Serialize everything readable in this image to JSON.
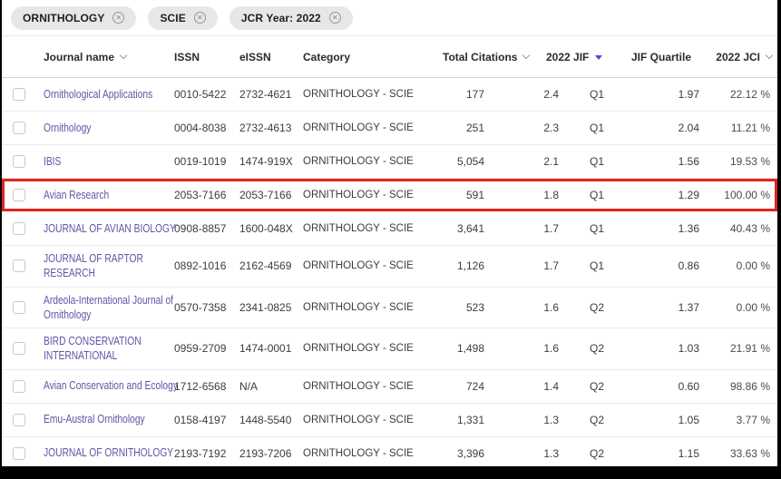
{
  "filters": {
    "chips": [
      {
        "label": "ORNITHOLOGY"
      },
      {
        "label": "SCIE"
      },
      {
        "label": "JCR Year: 2022"
      }
    ]
  },
  "table": {
    "columns": [
      {
        "id": "journal_name",
        "label": "Journal name",
        "sortable": true,
        "sorted": null
      },
      {
        "id": "issn",
        "label": "ISSN",
        "sortable": false,
        "sorted": null
      },
      {
        "id": "eissn",
        "label": "eISSN",
        "sortable": false,
        "sorted": null
      },
      {
        "id": "category",
        "label": "Category",
        "sortable": false,
        "sorted": null
      },
      {
        "id": "total_citations",
        "label": "Total Citations",
        "sortable": true,
        "sorted": null
      },
      {
        "id": "jif",
        "label": "2022 JIF",
        "sortable": true,
        "sorted": "desc"
      },
      {
        "id": "jif_quartile",
        "label": "JIF Quartile",
        "sortable": false,
        "sorted": null
      },
      {
        "id": "jci",
        "label": "2022 JCI",
        "sortable": true,
        "sorted": null
      }
    ],
    "rows": [
      {
        "name": "Ornithological Applications",
        "issn": "0010-5422",
        "eissn": "2732-4621",
        "category": "ORNITHOLOGY - SCIE",
        "total_citations": "177",
        "jif": "2.4",
        "jif_quartile": "Q1",
        "jci": "1.97",
        "jci_pct": "22.12 %",
        "highlighted": false
      },
      {
        "name": "Ornithology",
        "issn": "0004-8038",
        "eissn": "2732-4613",
        "category": "ORNITHOLOGY - SCIE",
        "total_citations": "251",
        "jif": "2.3",
        "jif_quartile": "Q1",
        "jci": "2.04",
        "jci_pct": "11.21 %",
        "highlighted": false
      },
      {
        "name": "IBIS",
        "issn": "0019-1019",
        "eissn": "1474-919X",
        "category": "ORNITHOLOGY - SCIE",
        "total_citations": "5,054",
        "jif": "2.1",
        "jif_quartile": "Q1",
        "jci": "1.56",
        "jci_pct": "19.53 %",
        "highlighted": false
      },
      {
        "name": "Avian Research",
        "issn": "2053-7166",
        "eissn": "2053-7166",
        "category": "ORNITHOLOGY - SCIE",
        "total_citations": "591",
        "jif": "1.8",
        "jif_quartile": "Q1",
        "jci": "1.29",
        "jci_pct": "100.00 %",
        "highlighted": true
      },
      {
        "name": "JOURNAL OF AVIAN BIOLOGY",
        "issn": "0908-8857",
        "eissn": "1600-048X",
        "category": "ORNITHOLOGY - SCIE",
        "total_citations": "3,641",
        "jif": "1.7",
        "jif_quartile": "Q1",
        "jci": "1.36",
        "jci_pct": "40.43 %",
        "highlighted": false
      },
      {
        "name": "JOURNAL OF RAPTOR RESEARCH",
        "issn": "0892-1016",
        "eissn": "2162-4569",
        "category": "ORNITHOLOGY - SCIE",
        "total_citations": "1,126",
        "jif": "1.7",
        "jif_quartile": "Q1",
        "jci": "0.86",
        "jci_pct": "0.00 %",
        "highlighted": false
      },
      {
        "name": "Ardeola-International Journal of Ornithology",
        "issn": "0570-7358",
        "eissn": "2341-0825",
        "category": "ORNITHOLOGY - SCIE",
        "total_citations": "523",
        "jif": "1.6",
        "jif_quartile": "Q2",
        "jci": "1.37",
        "jci_pct": "0.00 %",
        "highlighted": false
      },
      {
        "name": "BIRD CONSERVATION INTERNATIONAL",
        "issn": "0959-2709",
        "eissn": "1474-0001",
        "category": "ORNITHOLOGY - SCIE",
        "total_citations": "1,498",
        "jif": "1.6",
        "jif_quartile": "Q2",
        "jci": "1.03",
        "jci_pct": "21.91 %",
        "highlighted": false
      },
      {
        "name": "Avian Conservation and Ecology",
        "issn": "1712-6568",
        "eissn": "N/A",
        "category": "ORNITHOLOGY - SCIE",
        "total_citations": "724",
        "jif": "1.4",
        "jif_quartile": "Q2",
        "jci": "0.60",
        "jci_pct": "98.86 %",
        "highlighted": false
      },
      {
        "name": "Emu-Austral Ornithology",
        "issn": "0158-4197",
        "eissn": "1448-5540",
        "category": "ORNITHOLOGY - SCIE",
        "total_citations": "1,331",
        "jif": "1.3",
        "jif_quartile": "Q2",
        "jci": "1.05",
        "jci_pct": "3.77 %",
        "highlighted": false
      },
      {
        "name": "JOURNAL OF ORNITHOLOGY",
        "issn": "2193-7192",
        "eissn": "2193-7206",
        "category": "ORNITHOLOGY - SCIE",
        "total_citations": "3,396",
        "jif": "1.3",
        "jif_quartile": "Q2",
        "jci": "1.15",
        "jci_pct": "33.63 %",
        "highlighted": false
      }
    ]
  },
  "icons": {
    "chip_close": "✕",
    "sort_inactive": "chevron-down",
    "sort_active": "triangle-down"
  },
  "colors": {
    "link_purple": "#5e55a5",
    "sort_active_purple": "#5b43d6",
    "highlight_red": "#e2231c",
    "chip_bg": "#e7e7e7",
    "letterbox_black": "#000000"
  }
}
